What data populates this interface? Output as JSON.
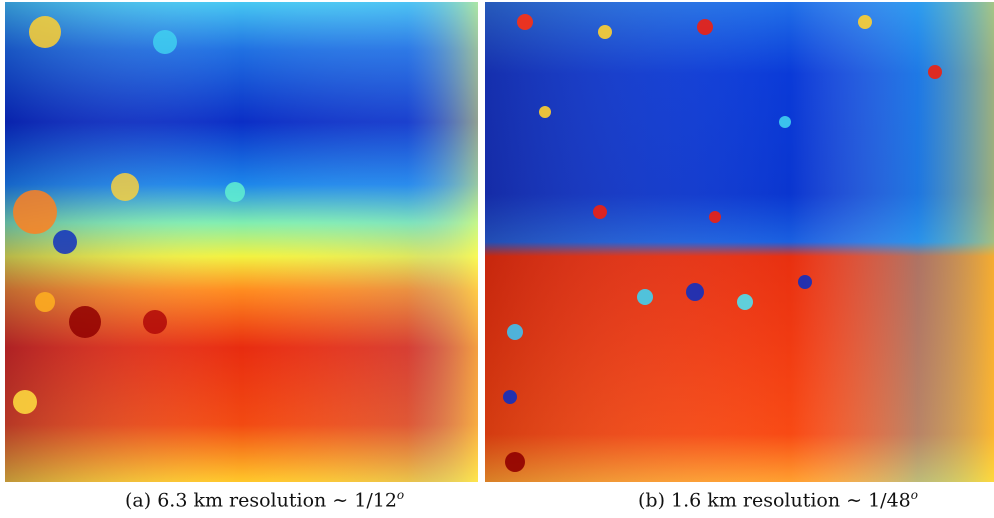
{
  "figure": {
    "panels": [
      {
        "label": "(a)",
        "caption": "6.3 km resolution ∼ 1/12",
        "superscript": "o"
      },
      {
        "label": "(b)",
        "caption": "1.6 km resolution ∼ 1/48",
        "superscript": "o"
      }
    ]
  }
}
